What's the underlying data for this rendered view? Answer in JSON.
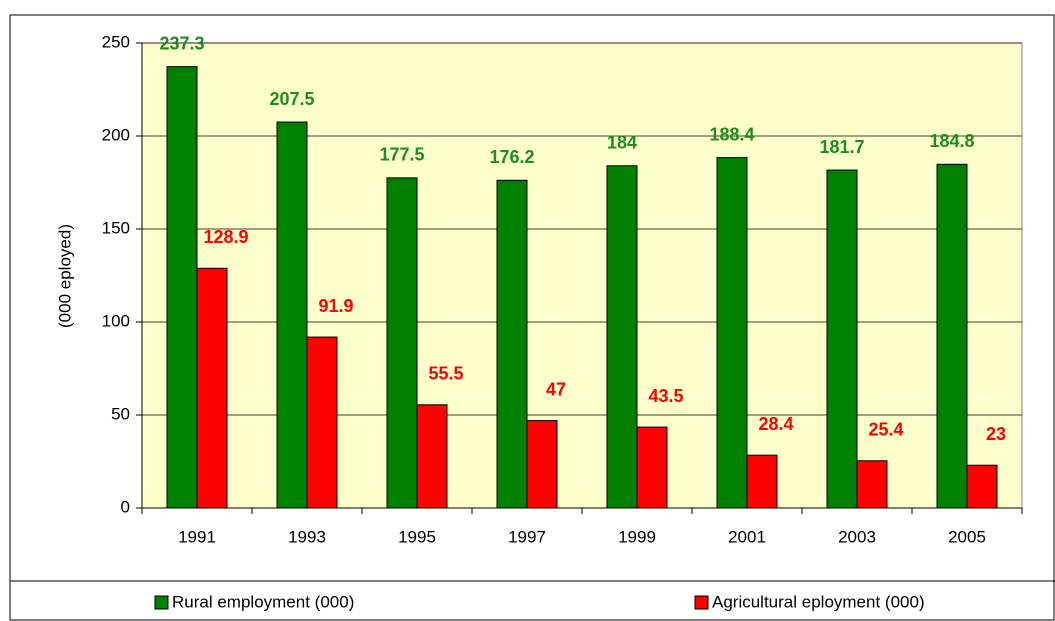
{
  "chart_data": {
    "type": "bar",
    "y_label": "(000 eployed)",
    "categories": [
      "1991",
      "1993",
      "1995",
      "1997",
      "1999",
      "2001",
      "2003",
      "2005"
    ],
    "series": [
      {
        "name": "Rural employment (000)",
        "color": "#008000",
        "label_color": "#1e8c1e",
        "values": [
          237.3,
          207.5,
          177.5,
          176.2,
          184,
          188.4,
          181.7,
          184.8
        ]
      },
      {
        "name": "Agricultural eployment (000)",
        "color": "#ff0000",
        "label_color": "#ff0000",
        "values": [
          128.9,
          91.9,
          55.5,
          47,
          43.5,
          28.4,
          25.4,
          23
        ]
      }
    ],
    "ylim": [
      0,
      250
    ],
    "yticks": [
      0,
      50,
      100,
      150,
      200,
      250
    ],
    "grid": true,
    "plot_background": "#ffffcc"
  }
}
